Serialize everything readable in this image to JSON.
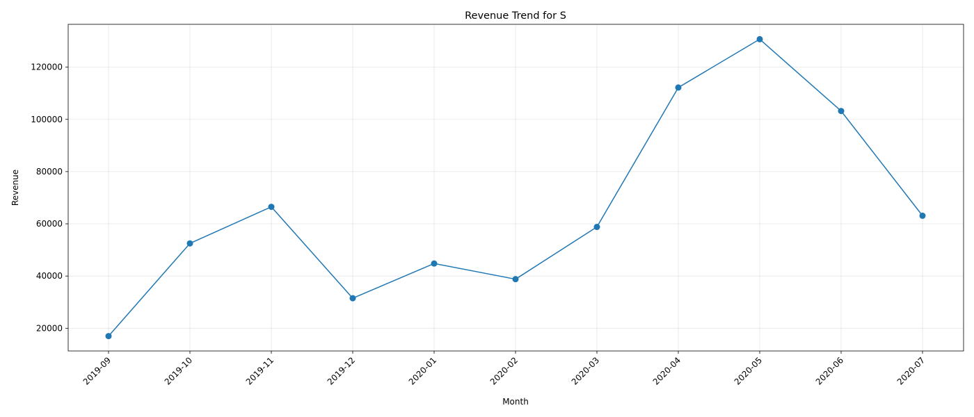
{
  "chart_data": {
    "type": "line",
    "title": "Revenue Trend for S",
    "xlabel": "Month",
    "ylabel": "Revenue",
    "x": [
      "2019-09",
      "2019-10",
      "2019-11",
      "2019-12",
      "2020-01",
      "2020-02",
      "2020-03",
      "2020-04",
      "2020-05",
      "2020-06",
      "2020-07"
    ],
    "series": [
      {
        "values": [
          17000,
          52500,
          66500,
          31500,
          44800,
          38800,
          58800,
          112200,
          130700,
          103200,
          63100
        ],
        "color": "#1f77b4",
        "marker": "circle"
      }
    ],
    "ylim": [
      11300,
      136400
    ],
    "yticks": [
      20000,
      40000,
      60000,
      80000,
      100000,
      120000
    ],
    "grid": true,
    "legend": "none"
  }
}
